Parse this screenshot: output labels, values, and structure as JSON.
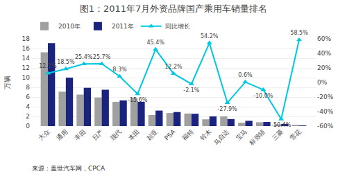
{
  "chart_data": {
    "type": "bar",
    "title": "图1：2011年7月外资品牌国产乘用车销量排名",
    "categories": [
      "大众",
      "通用",
      "丰田",
      "日产",
      "现代",
      "本田",
      "起亚",
      "PSA",
      "福特",
      "铃木",
      "马自达",
      "宝马",
      "标致轿",
      "三菱",
      "雪花"
    ],
    "series": [
      {
        "name": "2010年",
        "type": "bar",
        "color": "#a0a0a0",
        "values": [
          15.2,
          7.1,
          6.5,
          5.9,
          5.0,
          5.8,
          2.3,
          2.7,
          2.6,
          1.4,
          2.0,
          0.7,
          0.8,
          0.35,
          0.15
        ]
      },
      {
        "name": "2011年",
        "type": "bar",
        "color": "#1a237e",
        "values": [
          17.1,
          10.0,
          7.9,
          7.5,
          5.3,
          5.0,
          3.2,
          2.9,
          2.55,
          2.0,
          1.45,
          1.1,
          0.85,
          0.45,
          0.08
        ]
      },
      {
        "name": "同比增长",
        "type": "line",
        "axis": "y2",
        "color": "#00c8e0",
        "marker": "triangle-up",
        "data_labels": true,
        "values": [
          12.7,
          18.5,
          25.4,
          25.7,
          8.3,
          -15.6,
          45.4,
          12.2,
          -2.1,
          54.2,
          -27.9,
          0.6,
          -10.0,
          -50.4,
          58.5
        ],
        "value_labels": [
          "12.7%",
          "18.5%",
          "25.4%",
          "25.7%",
          "8.3%",
          "-15.6%",
          "45.4%",
          "12.2%",
          "-2.1%",
          "54.2%",
          "-27.9%",
          "0.6%",
          "-10.0%",
          "-50.4%",
          "58.5%"
        ]
      }
    ],
    "ylabel": "万辆",
    "ylim": [
      0,
      18
    ],
    "yticks": [
      0,
      2,
      4,
      6,
      8,
      10,
      12,
      14,
      16,
      18
    ],
    "y2lim": [
      -60,
      60
    ],
    "y2ticks": [
      {
        "value": -60,
        "label": "-60%"
      },
      {
        "value": -40,
        "label": "-40%"
      },
      {
        "value": -20,
        "label": "-20%"
      },
      {
        "value": 0,
        "label": "0%"
      },
      {
        "value": 20,
        "label": "20%"
      },
      {
        "value": 40,
        "label": "40%"
      },
      {
        "value": 60,
        "label": "60%"
      }
    ],
    "grid": true,
    "legend": "upper left",
    "annotations": [
      "来源：盖世汽车网，CPCA"
    ]
  }
}
